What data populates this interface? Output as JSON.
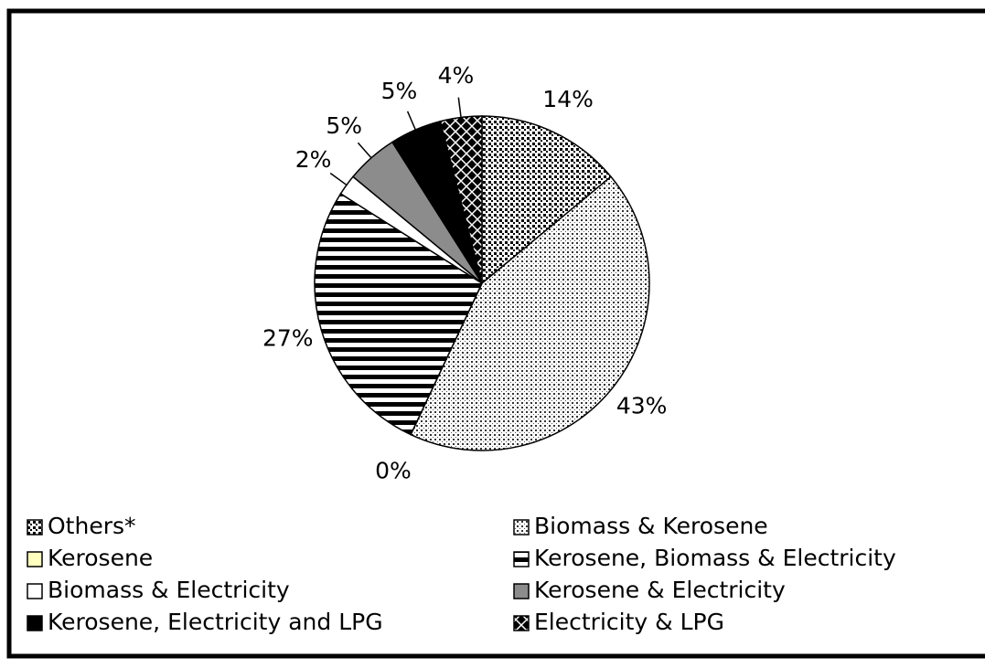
{
  "chart_data": {
    "type": "pie",
    "categories": [
      "Others*",
      "Biomass & Kerosene",
      "Kerosene",
      "Kerosene, Biomass & Electricity",
      "Biomass & Electricity",
      "Kerosene & Electricity",
      "Kerosene, Electricity and LPG",
      "Electricity & LPG"
    ],
    "values": [
      14,
      43,
      0,
      27,
      2,
      5,
      5,
      4
    ],
    "value_labels": [
      "14%",
      "43%",
      "0%",
      "27%",
      "2%",
      "5%",
      "5%",
      "4%"
    ]
  }
}
